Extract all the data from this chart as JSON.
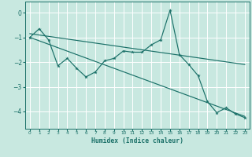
{
  "xlabel": "Humidex (Indice chaleur)",
  "background_color": "#c8e8e0",
  "grid_color": "#ffffff",
  "line_color": "#1a7068",
  "xlim": [
    -0.5,
    23.5
  ],
  "ylim": [
    -4.7,
    0.45
  ],
  "yticks": [
    0,
    -1,
    -2,
    -3,
    -4
  ],
  "xticks": [
    0,
    1,
    2,
    3,
    4,
    5,
    6,
    7,
    8,
    9,
    10,
    11,
    12,
    13,
    14,
    15,
    16,
    17,
    18,
    19,
    20,
    21,
    22,
    23
  ],
  "series1_x": [
    0,
    1,
    2,
    3,
    4,
    5,
    6,
    7,
    8,
    9,
    10,
    11,
    12,
    13,
    14,
    15,
    16,
    17,
    18,
    19,
    20,
    21,
    22,
    23
  ],
  "series1_y": [
    -1.0,
    -0.65,
    -1.1,
    -2.15,
    -1.85,
    -2.25,
    -2.6,
    -2.4,
    -1.95,
    -1.85,
    -1.55,
    -1.6,
    -1.6,
    -1.3,
    -1.1,
    0.1,
    -1.7,
    -2.1,
    -2.55,
    -3.6,
    -4.05,
    -3.85,
    -4.1,
    -4.25
  ],
  "trend1_x": [
    0,
    23
  ],
  "trend1_y": [
    -0.85,
    -2.1
  ],
  "trend2_x": [
    0,
    23
  ],
  "trend2_y": [
    -1.0,
    -4.2
  ]
}
